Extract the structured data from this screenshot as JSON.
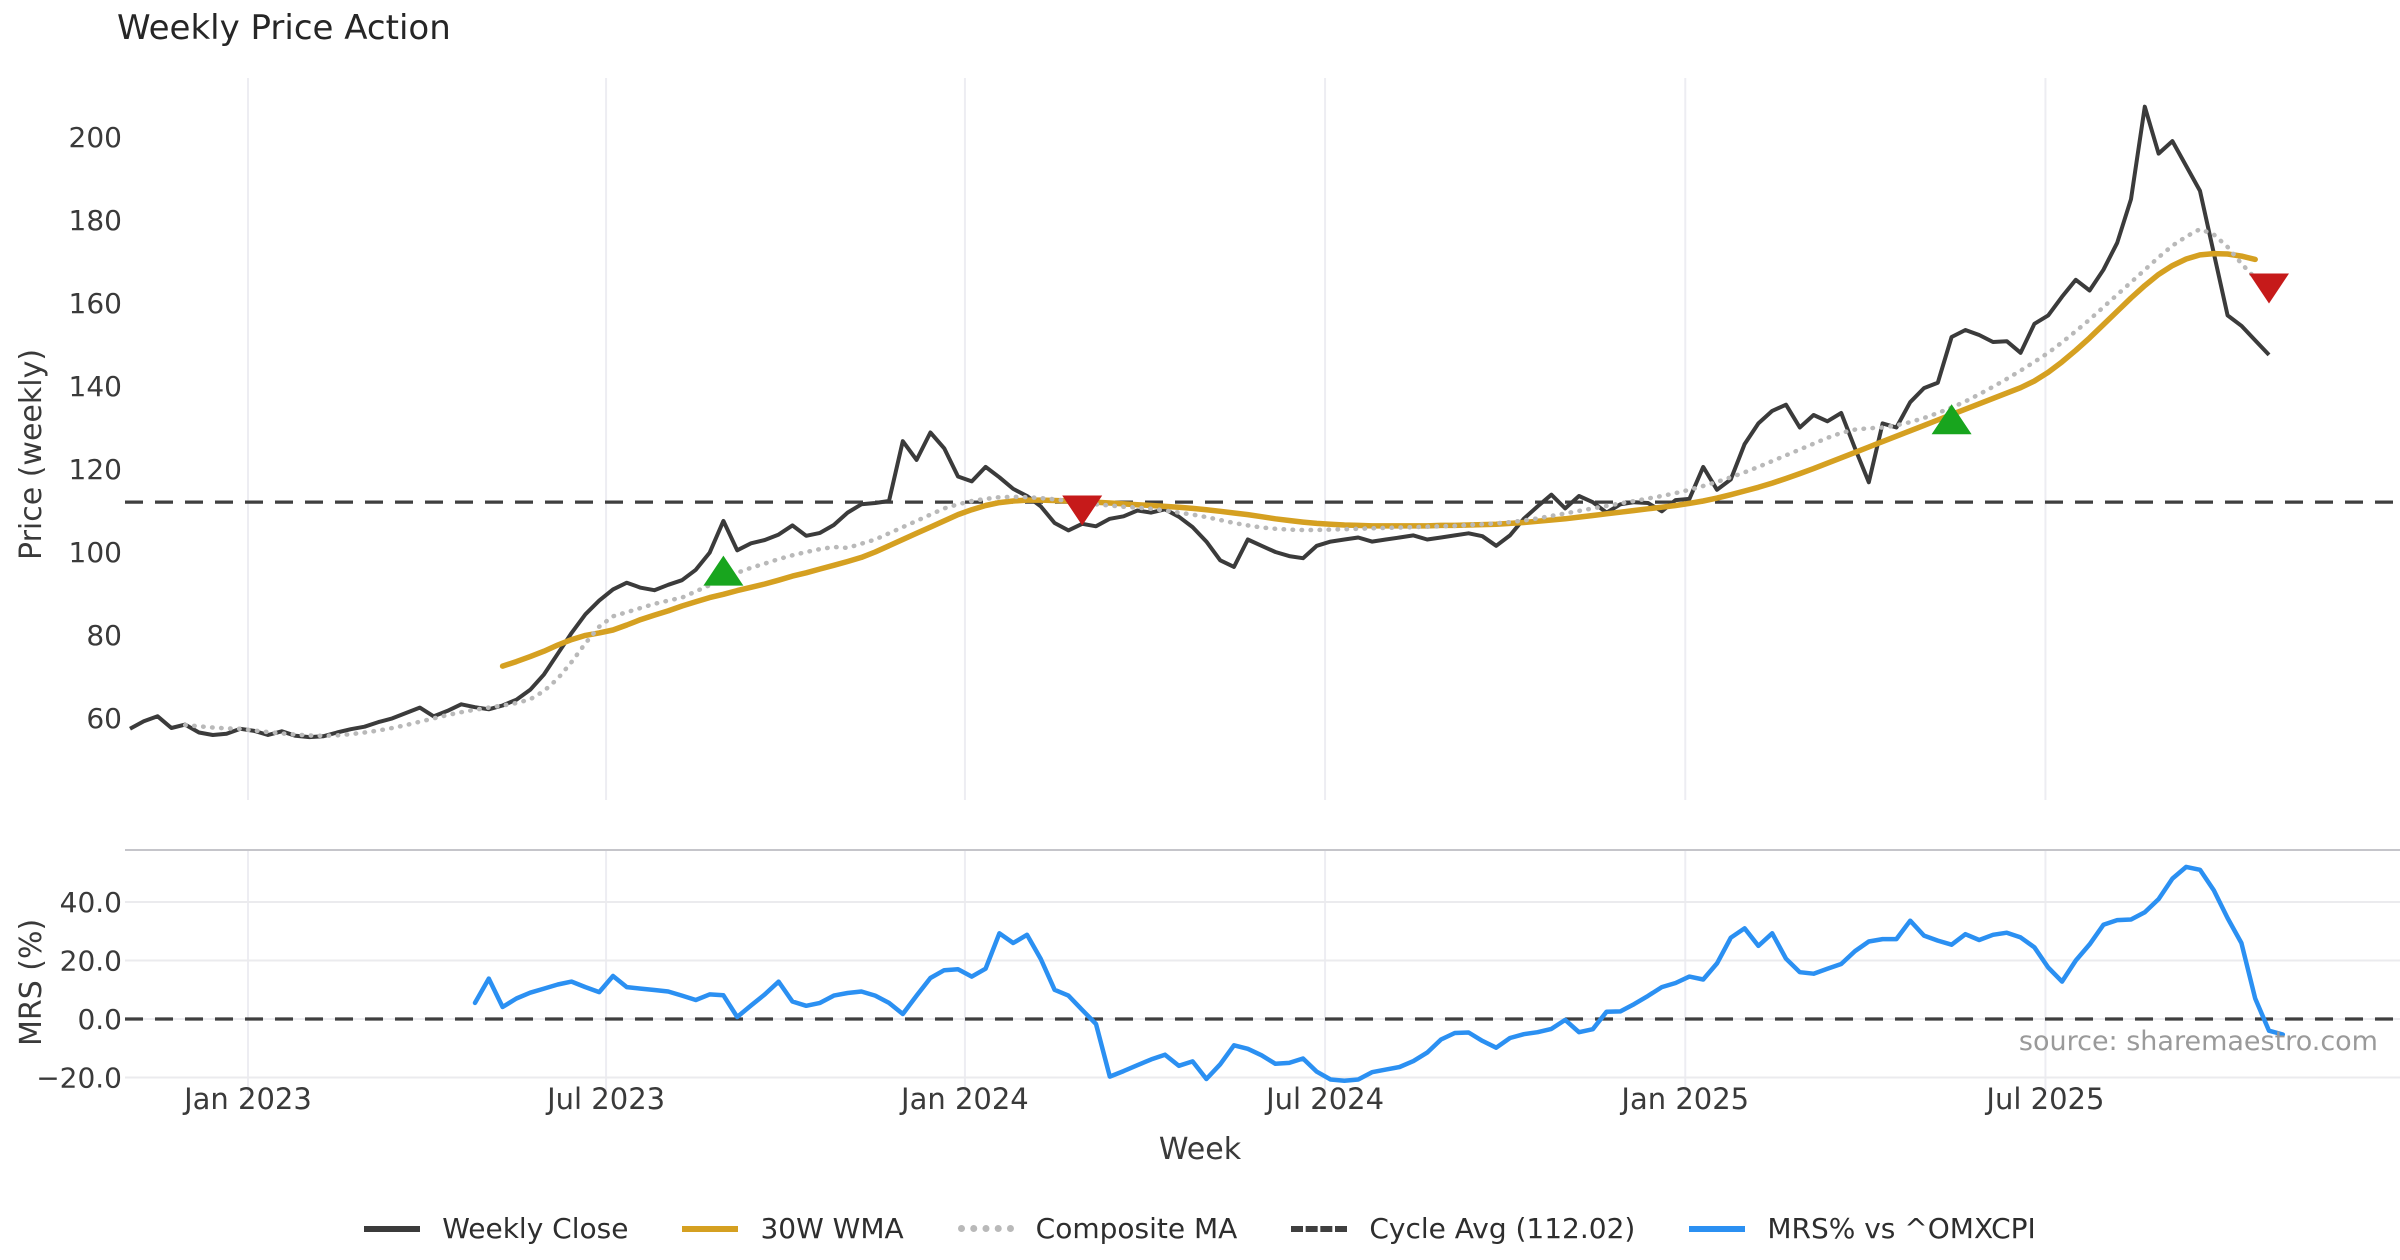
{
  "title": "Weekly Price Action",
  "source_note": "source: sharemaestro.com",
  "axes": {
    "price_axis_title": "Price (weekly)",
    "mrs_axis_title": "MRS (%)",
    "x_axis_title": "Week"
  },
  "legend": {
    "items": [
      {
        "label": "Weekly Close",
        "style": "solid-close"
      },
      {
        "label": "30W WMA",
        "style": "solid-wma"
      },
      {
        "label": "Composite MA",
        "style": "dotted-comp"
      },
      {
        "label": "Cycle Avg (112.02)",
        "style": "dashed-cycle"
      },
      {
        "label": "MRS% vs ^OMXCPI",
        "style": "solid-mrs"
      }
    ]
  },
  "colors": {
    "weekly_close": "#3b3b3b",
    "wma30": "#d5a021",
    "composite_ma": "#b9b9b9",
    "cycle_avg": "#3f3f3f",
    "mrs": "#2b90f2",
    "buy_marker": "#18a51e",
    "sell_marker": "#c61a1a",
    "grid_vertical": "#ededf2",
    "grid_horizontal": "#ebebee",
    "panel_border": "#c5c5ca",
    "tick_text": "#3a3a3a"
  },
  "chart_data": {
    "type": "line",
    "title": "Weekly Price Action",
    "xlabel": "Week",
    "panels": [
      {
        "name": "price",
        "ylabel": "Price (weekly)",
        "ylim": [
          40,
          215
        ],
        "grid": "vertical-only"
      },
      {
        "name": "mrs",
        "ylabel": "MRS (%)",
        "ylim": [
          -26,
          58
        ],
        "grid": "horizontal"
      }
    ],
    "x_ticks": [
      {
        "label": "Jan 2023",
        "week": 8.55
      },
      {
        "label": "Jul 2023",
        "week": 34.5
      },
      {
        "label": "Jan 2024",
        "week": 60.5
      },
      {
        "label": "Jul 2024",
        "week": 86.6
      },
      {
        "label": "Jan 2025",
        "week": 112.7
      },
      {
        "label": "Jul 2025",
        "week": 138.8
      }
    ],
    "price_ticks": [
      {
        "label": "200",
        "value": 200
      },
      {
        "label": "180",
        "value": 180
      },
      {
        "label": "160",
        "value": 160
      },
      {
        "label": "140",
        "value": 140
      },
      {
        "label": "120",
        "value": 120
      },
      {
        "label": "100",
        "value": 100
      },
      {
        "label": "80",
        "value": 80
      },
      {
        "label": "60",
        "value": 60
      }
    ],
    "mrs_ticks": [
      {
        "label": "40.0",
        "value": 40
      },
      {
        "label": "20.0",
        "value": 20
      },
      {
        "label": "0.0",
        "value": 0
      },
      {
        "label": "−20.0",
        "value": -20
      }
    ],
    "n_weeks": 156,
    "cycle_avg": 112.02,
    "series": [
      {
        "name": "Weekly Close",
        "panel": "price",
        "color_key": "weekly_close",
        "start_week": 0,
        "values": [
          57.4,
          59.2,
          60.4,
          57.6,
          58.4,
          56.5,
          55.9,
          56.2,
          57.4,
          56.9,
          55.9,
          56.8,
          55.7,
          55.4,
          55.6,
          56.5,
          57.3,
          57.9,
          59.0,
          59.9,
          61.2,
          62.5,
          60.4,
          61.7,
          63.3,
          62.6,
          62.1,
          63.0,
          64.4,
          66.8,
          70.5,
          75.5,
          80.5,
          85.0,
          88.3,
          91.0,
          92.6,
          91.4,
          90.8,
          92.1,
          93.2,
          95.7,
          99.8,
          107.5,
          100.4,
          102.1,
          102.9,
          104.2,
          106.4,
          103.9,
          104.6,
          106.5,
          109.5,
          111.5,
          111.8,
          112.3,
          126.7,
          122.2,
          128.8,
          125.0,
          118.2,
          117.0,
          120.5,
          118.0,
          115.2,
          113.5,
          111.0,
          107.0,
          105.2,
          106.8,
          106.2,
          108.0,
          108.6,
          110.0,
          109.5,
          110.3,
          108.5,
          106.0,
          102.5,
          98.0,
          96.4,
          103.0,
          101.5,
          100.0,
          99.0,
          98.5,
          101.5,
          102.5,
          103.0,
          103.5,
          102.5,
          103.0,
          103.5,
          104.0,
          103.0,
          103.5,
          104.0,
          104.5,
          103.8,
          101.5,
          104.0,
          108.0,
          111.0,
          113.8,
          110.5,
          113.5,
          112.0,
          109.5,
          111.5,
          112.0,
          111.8,
          109.8,
          112.5,
          112.8,
          120.5,
          115.0,
          117.5,
          126.0,
          131.0,
          134.0,
          135.5,
          130.0,
          133.0,
          131.5,
          133.5,
          125.0,
          116.8,
          131.0,
          130.0,
          136.1,
          139.5,
          140.8,
          151.8,
          153.5,
          152.3,
          150.6,
          150.8,
          148.0,
          155.0,
          157.0,
          161.5,
          165.6,
          163.0,
          168.0,
          174.5,
          185.0,
          207.3,
          196.0,
          199.0,
          193.0,
          187.0,
          172.0,
          157.0,
          154.5,
          151.0,
          147.5
        ]
      },
      {
        "name": "30W WMA",
        "panel": "price",
        "color_key": "wma30",
        "start_week": 27,
        "values": [
          72.5,
          73.6,
          74.8,
          76.1,
          77.6,
          78.9,
          79.9,
          80.5,
          81.2,
          82.4,
          83.7,
          84.8,
          85.8,
          87.0,
          88.0,
          89.0,
          89.8,
          90.7,
          91.5,
          92.3,
          93.2,
          94.2,
          95.0,
          95.9,
          96.8,
          97.7,
          98.7,
          100.0,
          101.5,
          103.0,
          104.5,
          106.0,
          107.5,
          109.0,
          110.2,
          111.2,
          111.9,
          112.3,
          112.5,
          112.5,
          112.4,
          112.3,
          112.2,
          112.0,
          111.8,
          111.6,
          111.4,
          111.2,
          111.0,
          110.8,
          110.5,
          110.2,
          109.8,
          109.4,
          109.0,
          108.5,
          108.0,
          107.6,
          107.2,
          106.9,
          106.7,
          106.5,
          106.4,
          106.3,
          106.3,
          106.3,
          106.3,
          106.3,
          106.4,
          106.4,
          106.5,
          106.6,
          106.7,
          106.9,
          107.1,
          107.4,
          107.7,
          108.0,
          108.4,
          108.8,
          109.2,
          109.6,
          110.0,
          110.4,
          110.8,
          111.2,
          111.7,
          112.3,
          113.0,
          113.8,
          114.7,
          115.6,
          116.6,
          117.7,
          118.9,
          120.1,
          121.4,
          122.7,
          124.0,
          125.3,
          126.6,
          127.9,
          129.2,
          130.5,
          131.8,
          133.1,
          134.4,
          135.7,
          137.0,
          138.3,
          139.6,
          141.2,
          143.3,
          145.8,
          148.6,
          151.6,
          154.8,
          158.0,
          161.2,
          164.2,
          166.9,
          169.0,
          170.6,
          171.6,
          171.9,
          171.8,
          171.3,
          170.5
        ]
      },
      {
        "name": "Composite MA",
        "panel": "price",
        "color_key": "composite_ma",
        "start_week": 4,
        "values": [
          58.3,
          58.0,
          57.7,
          57.5,
          57.4,
          57.0,
          56.6,
          56.3,
          56.0,
          55.8,
          55.7,
          55.8,
          56.1,
          56.5,
          57.0,
          57.6,
          58.3,
          59.1,
          59.9,
          60.7,
          61.4,
          62.0,
          62.5,
          63.0,
          63.6,
          64.5,
          66.5,
          69.5,
          73.5,
          78.0,
          82.0,
          84.5,
          85.5,
          86.5,
          87.5,
          88.3,
          89.0,
          90.5,
          92.0,
          93.8,
          95.0,
          96.2,
          97.2,
          98.3,
          99.2,
          100.0,
          100.7,
          101.2,
          101.0,
          102.0,
          103.0,
          104.5,
          106.0,
          107.5,
          109.0,
          110.5,
          111.5,
          112.3,
          112.8,
          113.2,
          113.3,
          113.2,
          113.0,
          112.7,
          112.3,
          111.9,
          111.5,
          111.2,
          110.9,
          110.7,
          110.4,
          110.0,
          109.5,
          109.0,
          108.4,
          107.7,
          107.0,
          106.4,
          105.9,
          105.6,
          105.4,
          105.3,
          105.3,
          105.4,
          105.5,
          105.6,
          105.7,
          105.8,
          105.9,
          106.0,
          106.1,
          106.2,
          106.3,
          106.5,
          106.7,
          106.9,
          107.2,
          107.6,
          108.1,
          108.7,
          109.3,
          109.9,
          110.5,
          111.1,
          111.7,
          112.3,
          112.9,
          113.5,
          114.2,
          115.0,
          115.9,
          116.9,
          118.0,
          119.2,
          120.5,
          121.9,
          123.3,
          124.7,
          126.1,
          127.5,
          128.7,
          129.5,
          129.8,
          130.0,
          130.5,
          131.3,
          132.3,
          133.5,
          134.8,
          136.3,
          138.0,
          139.8,
          141.7,
          143.7,
          145.8,
          148.0,
          150.5,
          153.2,
          156.0,
          159.0,
          162.0,
          165.0,
          168.0,
          171.0,
          173.8,
          176.0,
          177.8,
          176.5,
          173.5,
          169.5,
          166.0,
          164.0,
          163.4
        ]
      },
      {
        "name": "MRS% vs ^OMXCPI",
        "panel": "mrs",
        "color_key": "mrs",
        "start_week": 25,
        "values": [
          5.5,
          13.8,
          4.1,
          7.0,
          9.0,
          10.4,
          11.8,
          12.8,
          10.9,
          9.2,
          14.7,
          10.9,
          10.4,
          9.9,
          9.4,
          8.0,
          6.5,
          8.4,
          8.1,
          0.7,
          4.6,
          8.4,
          12.8,
          6.0,
          4.5,
          5.5,
          8.0,
          8.9,
          9.4,
          8.0,
          5.5,
          1.7,
          8.0,
          14.0,
          16.7,
          17.0,
          14.5,
          17.2,
          29.3,
          26.0,
          28.8,
          20.5,
          10.0,
          8.0,
          3.1,
          -1.7,
          -19.7,
          -17.8,
          -15.8,
          -13.8,
          -12.2,
          -16.0,
          -14.5,
          -20.5,
          -15.5,
          -9.0,
          -10.2,
          -12.4,
          -15.3,
          -15.0,
          -13.5,
          -18.0,
          -20.7,
          -21.1,
          -20.7,
          -18.2,
          -17.3,
          -16.4,
          -14.4,
          -11.5,
          -7.0,
          -4.8,
          -4.6,
          -7.5,
          -9.8,
          -6.5,
          -5.2,
          -4.5,
          -3.4,
          -0.3,
          -4.5,
          -3.5,
          2.5,
          2.6,
          5.1,
          7.9,
          10.9,
          12.3,
          14.5,
          13.5,
          19.0,
          27.8,
          31.0,
          25.0,
          29.3,
          20.6,
          16.0,
          15.5,
          17.2,
          18.8,
          23.2,
          26.5,
          27.3,
          27.3,
          33.6,
          28.5,
          26.8,
          25.4,
          29.0,
          27.0,
          28.8,
          29.5,
          27.9,
          24.5,
          17.6,
          12.8,
          20.0,
          25.5,
          32.2,
          33.8,
          34.0,
          36.5,
          41.0,
          48.0,
          52.0,
          51.0,
          44.0,
          34.5,
          26.0,
          7.0,
          -4.0,
          -5.3
        ]
      }
    ],
    "markers": [
      {
        "type": "buy",
        "shape": "triangle-up",
        "week": 43,
        "price": 95.5
      },
      {
        "type": "sell",
        "shape": "triangle-down",
        "week": 69,
        "price": 110.0
      },
      {
        "type": "buy",
        "shape": "triangle-up",
        "week": 132,
        "price": 132.0
      },
      {
        "type": "sell",
        "shape": "triangle-down",
        "week": 155,
        "price": 163.5
      }
    ]
  }
}
